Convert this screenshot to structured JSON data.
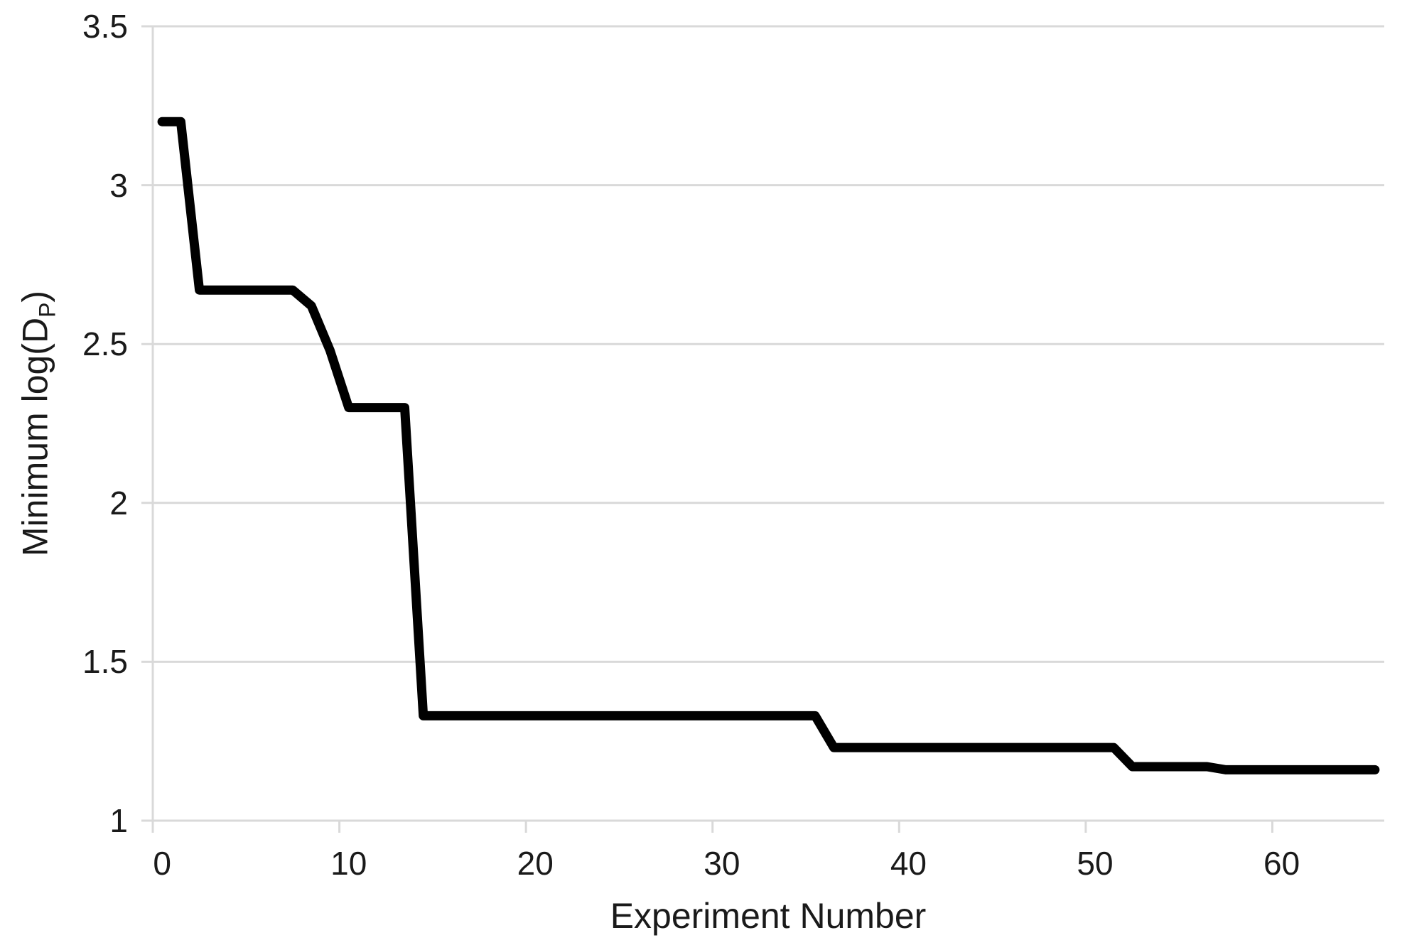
{
  "page": {
    "background": "#ffffff"
  },
  "chart_data": {
    "type": "line",
    "title": "",
    "xlabel": "Experiment Number",
    "ylabel": {
      "prefix": "Minimum log(D",
      "sub": "P",
      "suffix": ")"
    },
    "legend": "none",
    "grid": "horizontal",
    "ylim": [
      1,
      3.5
    ],
    "y_tick_values": [
      3.5,
      3,
      2.5,
      2,
      1.5,
      1
    ],
    "y_tick_labels": [
      "3.5",
      "3",
      "2.5",
      "2",
      "1.5",
      "1"
    ],
    "x_tick_positions": [
      0,
      10,
      20,
      30,
      40,
      50,
      60
    ],
    "x_tick_labels": [
      "0",
      "10",
      "20",
      "30",
      "40",
      "50",
      "60"
    ],
    "x": [
      0,
      1,
      2,
      3,
      4,
      5,
      6,
      7,
      8,
      9,
      10,
      11,
      12,
      13,
      14,
      15,
      16,
      17,
      18,
      19,
      20,
      21,
      22,
      23,
      24,
      25,
      26,
      27,
      28,
      29,
      30,
      31,
      32,
      33,
      34,
      35,
      36,
      37,
      38,
      39,
      40,
      41,
      42,
      43,
      44,
      45,
      46,
      47,
      48,
      49,
      50,
      51,
      52,
      53,
      54,
      55,
      56,
      57,
      58,
      59,
      60,
      61,
      62,
      63,
      64,
      65
    ],
    "values": [
      3.2,
      3.2,
      2.67,
      2.67,
      2.67,
      2.67,
      2.67,
      2.67,
      2.62,
      2.48,
      2.3,
      2.3,
      2.3,
      2.3,
      1.33,
      1.33,
      1.33,
      1.33,
      1.33,
      1.33,
      1.33,
      1.33,
      1.33,
      1.33,
      1.33,
      1.33,
      1.33,
      1.33,
      1.33,
      1.33,
      1.33,
      1.33,
      1.33,
      1.33,
      1.33,
      1.33,
      1.23,
      1.23,
      1.23,
      1.23,
      1.23,
      1.23,
      1.23,
      1.23,
      1.23,
      1.23,
      1.23,
      1.23,
      1.23,
      1.23,
      1.23,
      1.23,
      1.17,
      1.17,
      1.17,
      1.17,
      1.17,
      1.16,
      1.16,
      1.16,
      1.16,
      1.16,
      1.16,
      1.16,
      1.16,
      1.16
    ],
    "colors": {
      "line": "#000000",
      "grid": "#d9d9d9",
      "text": "#1a1a1a"
    }
  }
}
